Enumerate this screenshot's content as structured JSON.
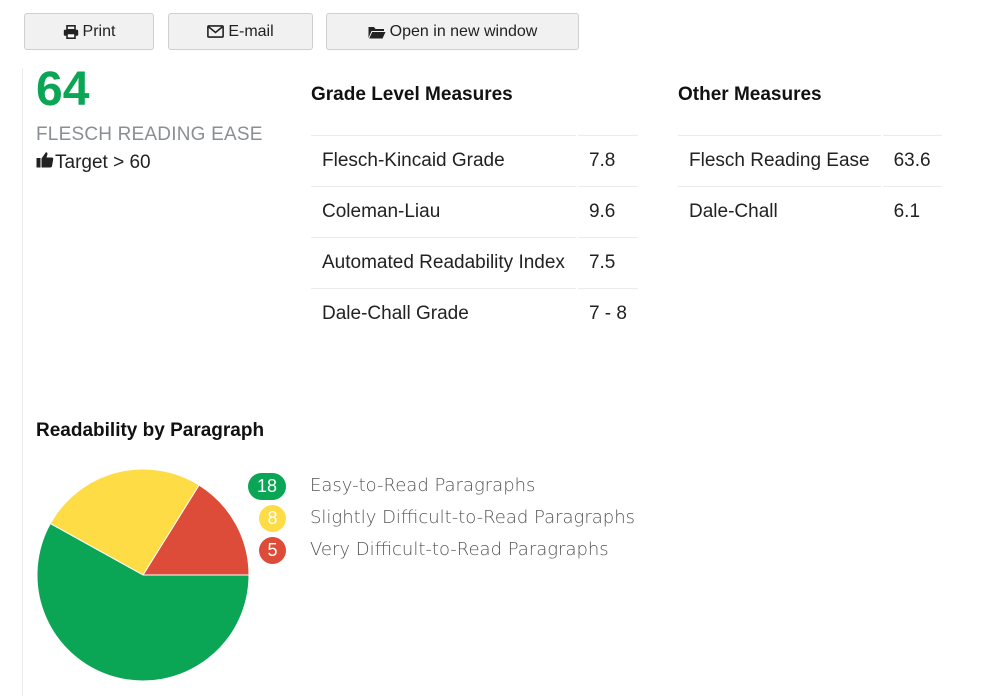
{
  "toolbar": {
    "print_label": "Print",
    "email_label": "E-mail",
    "open_label": "Open in new window"
  },
  "score": {
    "value": "64",
    "label": "FLESCH READING EASE",
    "target": "Target > 60",
    "color": "#0aa656"
  },
  "grade_measures": {
    "title": "Grade Level Measures",
    "rows": [
      {
        "name": "Flesch-Kincaid Grade",
        "value": "7.8"
      },
      {
        "name": "Coleman-Liau",
        "value": "9.6"
      },
      {
        "name": "Automated Readability Index",
        "value": "7.5"
      },
      {
        "name": "Dale-Chall Grade",
        "value": "7 - 8"
      }
    ]
  },
  "other_measures": {
    "title": "Other Measures",
    "rows": [
      {
        "name": "Flesch Reading Ease",
        "value": "63.6"
      },
      {
        "name": "Dale-Chall",
        "value": "6.1"
      }
    ]
  },
  "paragraphs": {
    "title": "Readability by Paragraph",
    "legend": [
      {
        "count": "18",
        "label": "Easy-to-Read Paragraphs",
        "color": "#0aa656"
      },
      {
        "count": "8",
        "label": "Slightly Difficult-to-Read Paragraphs",
        "color": "#fddc45"
      },
      {
        "count": "5",
        "label": "Very Difficult-to-Read Paragraphs",
        "color": "#dd4b39"
      }
    ]
  },
  "chart_data": {
    "type": "pie",
    "categories": [
      "Easy-to-Read Paragraphs",
      "Slightly Difficult-to-Read Paragraphs",
      "Very Difficult-to-Read Paragraphs"
    ],
    "values": [
      18,
      8,
      5
    ],
    "colors": [
      "#0aa656",
      "#fddc45",
      "#dd4b39"
    ]
  }
}
